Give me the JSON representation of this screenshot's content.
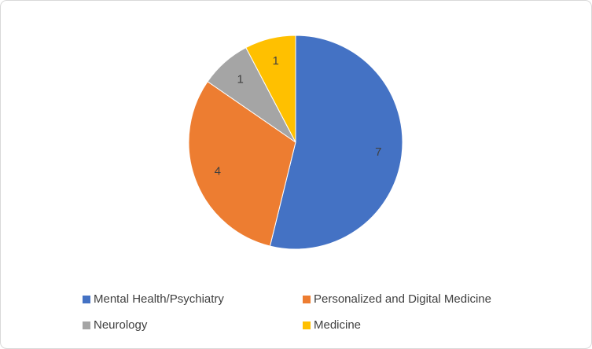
{
  "chart_data": {
    "type": "pie",
    "categories": [
      "Mental Health/Psychiatry",
      "Personalized and Digital Medicine",
      "Neurology",
      "Medicine"
    ],
    "values": [
      7,
      4,
      1,
      1
    ],
    "colors": [
      "#4472c4",
      "#ed7d31",
      "#a5a5a5",
      "#ffc000"
    ],
    "legend": "bottom"
  }
}
